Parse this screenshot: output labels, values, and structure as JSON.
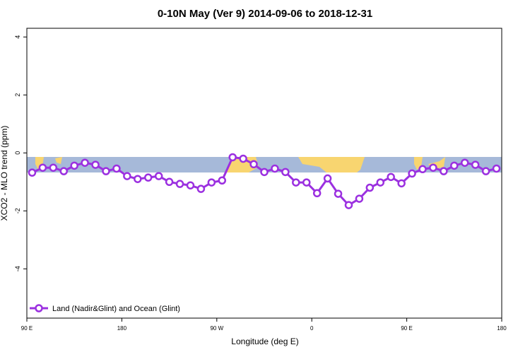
{
  "chart_data": {
    "type": "line",
    "title": "0-10N May (Ver 9)   2014-09-06 to 2018-12-31",
    "x_label": "Longitude (deg E)",
    "y_label": "XCO2 - MLO trend (ppm)",
    "x": [
      95,
      105,
      115,
      125,
      135,
      145,
      155,
      165,
      175,
      185,
      195,
      205,
      215,
      225,
      235,
      245,
      255,
      265,
      275,
      285,
      295,
      305,
      315,
      325,
      335,
      345,
      355,
      365,
      375,
      385,
      395,
      405,
      415,
      425,
      435,
      445,
      455,
      465,
      475,
      485,
      495,
      505,
      515,
      525,
      535
    ],
    "series": [
      {
        "name": "Land (Nadir&Glint) and Ocean (Glint)",
        "color": "#9b30e0",
        "values": [
          -0.68,
          -0.51,
          -0.51,
          -0.63,
          -0.44,
          -0.34,
          -0.41,
          -0.63,
          -0.54,
          -0.8,
          -0.9,
          -0.85,
          -0.8,
          -1.0,
          -1.07,
          -1.12,
          -1.24,
          -1.02,
          -0.95,
          -0.15,
          -0.2,
          -0.39,
          -0.66,
          -0.54,
          -0.66,
          -1.02,
          -1.02,
          -1.39,
          -0.88,
          -1.41,
          -1.8,
          -1.58,
          -1.2,
          -1.02,
          -0.83,
          -1.05,
          -0.71,
          -0.56,
          -0.51,
          -0.63,
          -0.44,
          -0.34,
          -0.41,
          -0.63,
          -0.54
        ]
      }
    ],
    "xlim": [
      90,
      540
    ],
    "xticks": [
      {
        "value": 90,
        "label": "90 E"
      },
      {
        "value": 180,
        "label": "180"
      },
      {
        "value": 270,
        "label": "90 W"
      },
      {
        "value": 360,
        "label": "0"
      },
      {
        "value": 450,
        "label": "90 E"
      },
      {
        "value": 540,
        "label": "180"
      }
    ],
    "ylim": [
      -5.7,
      4.3
    ],
    "yticks": [
      -4,
      -2,
      0,
      2,
      4
    ],
    "legend": "bottom-left"
  }
}
